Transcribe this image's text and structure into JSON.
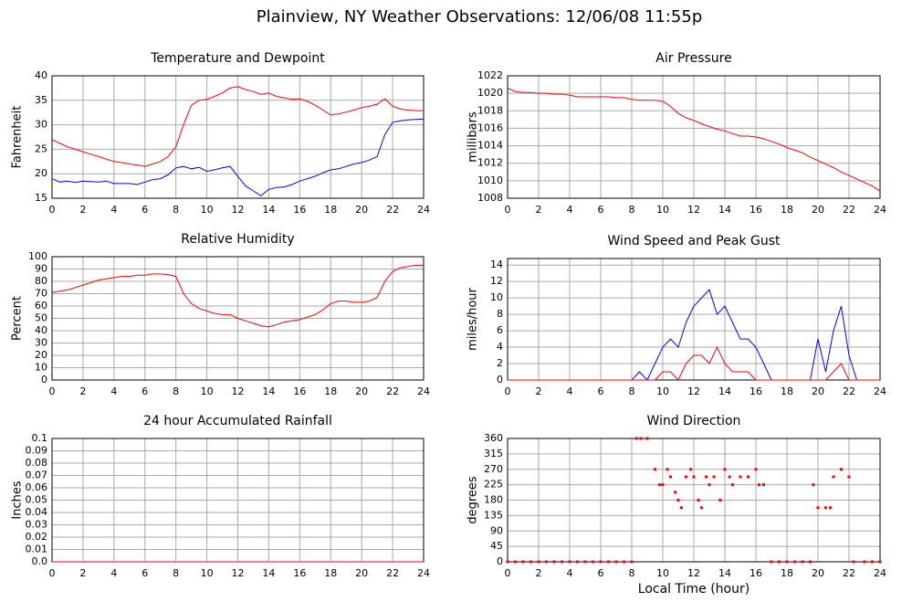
{
  "title": "Plainview, NY Weather Observations: 12/06/08 11:55p",
  "chart_data": [
    {
      "type": "line",
      "title": "Temperature and Dewpoint",
      "ylabel": "Fahrenheit",
      "xlim": [
        0,
        24
      ],
      "xticks": [
        0,
        2,
        4,
        6,
        8,
        10,
        12,
        14,
        16,
        18,
        20,
        22,
        24
      ],
      "ylim": [
        15,
        40
      ],
      "yticks": [
        15,
        20,
        25,
        30,
        35,
        40
      ],
      "grid": true,
      "x": [
        0,
        0.5,
        1,
        1.5,
        2,
        2.5,
        3,
        3.5,
        4,
        4.5,
        5,
        5.5,
        6,
        6.5,
        7,
        7.5,
        8,
        8.5,
        9,
        9.5,
        10,
        10.5,
        11,
        11.5,
        12,
        12.5,
        13,
        13.5,
        14,
        14.5,
        15,
        15.5,
        16,
        16.5,
        17,
        17.5,
        18,
        18.5,
        19,
        19.5,
        20,
        20.5,
        21,
        21.5,
        22,
        22.5,
        23,
        23.5,
        24
      ],
      "series": [
        {
          "color": "#ff0000",
          "values": [
            27,
            26.2,
            25.5,
            25,
            24.5,
            24,
            23.5,
            23,
            22.5,
            22.3,
            22,
            21.8,
            21.5,
            22,
            22.5,
            23.5,
            25.5,
            30,
            34,
            35,
            35.2,
            35.8,
            36.5,
            37.5,
            37.8,
            37.2,
            36.8,
            36.2,
            36.5,
            35.8,
            35.5,
            35.2,
            35.3,
            34.8,
            34,
            33,
            32,
            32.2,
            32.6,
            33,
            33.5,
            33.8,
            34.2,
            35.3,
            33.8,
            33.2,
            33,
            32.9,
            32.9
          ]
        },
        {
          "color": "#0000ff",
          "values": [
            19,
            18.3,
            18.5,
            18.2,
            18.5,
            18.4,
            18.3,
            18.5,
            18,
            18,
            18,
            17.8,
            18.3,
            18.8,
            19,
            19.8,
            21.2,
            21.5,
            21,
            21.3,
            20.5,
            20.8,
            21.2,
            21.5,
            19.5,
            17.5,
            16.5,
            15.5,
            16.8,
            17.2,
            17.3,
            17.8,
            18.5,
            19,
            19.5,
            20.2,
            20.8,
            21,
            21.5,
            22,
            22.3,
            22.8,
            23.5,
            28,
            30.5,
            30.8,
            31,
            31.1,
            31.2
          ]
        }
      ]
    },
    {
      "type": "line",
      "title": "Air Pressure",
      "ylabel": "millibars",
      "xlim": [
        0,
        24
      ],
      "xticks": [
        0,
        2,
        4,
        6,
        8,
        10,
        12,
        14,
        16,
        18,
        20,
        22,
        24
      ],
      "ylim": [
        1008,
        1022
      ],
      "yticks": [
        1008,
        1010,
        1012,
        1014,
        1016,
        1018,
        1020,
        1022
      ],
      "grid": true,
      "x": [
        0,
        0.5,
        1,
        1.5,
        2,
        2.5,
        3,
        3.5,
        4,
        4.5,
        5,
        5.5,
        6,
        6.5,
        7,
        7.5,
        8,
        8.5,
        9,
        9.5,
        10,
        10.5,
        11,
        11.5,
        12,
        12.5,
        13,
        13.5,
        14,
        14.5,
        15,
        15.5,
        16,
        16.5,
        17,
        17.5,
        18,
        18.5,
        19,
        19.5,
        20,
        20.5,
        21,
        21.5,
        22,
        22.5,
        23,
        23.5,
        24
      ],
      "series": [
        {
          "color": "#ff0000",
          "values": [
            1020.6,
            1020.2,
            1020.1,
            1020.1,
            1020,
            1020,
            1019.9,
            1019.9,
            1019.8,
            1019.6,
            1019.6,
            1019.6,
            1019.6,
            1019.6,
            1019.5,
            1019.5,
            1019.3,
            1019.2,
            1019.2,
            1019.2,
            1019.1,
            1018.5,
            1017.7,
            1017.2,
            1016.9,
            1016.5,
            1016.2,
            1015.9,
            1015.7,
            1015.4,
            1015.1,
            1015.1,
            1015,
            1014.8,
            1014.5,
            1014.2,
            1013.8,
            1013.5,
            1013.2,
            1012.7,
            1012.3,
            1011.9,
            1011.5,
            1011,
            1010.6,
            1010.2,
            1009.8,
            1009.4,
            1008.8
          ]
        }
      ]
    },
    {
      "type": "line",
      "title": "Relative Humidity",
      "ylabel": "Percent",
      "xlim": [
        0,
        24
      ],
      "xticks": [
        0,
        2,
        4,
        6,
        8,
        10,
        12,
        14,
        16,
        18,
        20,
        22,
        24
      ],
      "ylim": [
        0,
        100
      ],
      "yticks": [
        0,
        10,
        20,
        30,
        40,
        50,
        60,
        70,
        80,
        90,
        100
      ],
      "grid": true,
      "x": [
        0,
        0.5,
        1,
        1.5,
        2,
        2.5,
        3,
        3.5,
        4,
        4.5,
        5,
        5.5,
        6,
        6.5,
        7,
        7.5,
        8,
        8.5,
        9,
        9.5,
        10,
        10.5,
        11,
        11.5,
        12,
        12.5,
        13,
        13.5,
        14,
        14.5,
        15,
        15.5,
        16,
        16.5,
        17,
        17.5,
        18,
        18.5,
        19,
        19.5,
        20,
        20.5,
        21,
        21.5,
        22,
        22.5,
        23,
        23.5,
        24
      ],
      "series": [
        {
          "color": "#ff0000",
          "values": [
            71,
            72,
            73,
            75,
            77,
            79,
            81,
            82,
            83,
            84,
            84,
            85,
            85,
            86,
            86,
            85.5,
            84,
            70,
            62,
            58,
            56,
            54,
            53,
            53,
            50,
            48,
            46,
            44,
            43,
            45,
            47,
            48,
            49,
            51,
            53,
            57,
            62,
            64,
            64,
            63,
            63,
            64,
            67,
            80,
            88,
            91,
            92,
            93,
            93
          ]
        }
      ]
    },
    {
      "type": "line",
      "title": "Wind Speed and Peak Gust",
      "ylabel": "miles/hour",
      "xlim": [
        0,
        24
      ],
      "xticks": [
        0,
        2,
        4,
        6,
        8,
        10,
        12,
        14,
        16,
        18,
        20,
        22,
        24
      ],
      "ylim": [
        0,
        14.8
      ],
      "yticks": [
        0,
        2,
        4,
        6,
        8,
        10,
        12,
        14
      ],
      "grid": true,
      "x": [
        0,
        0.5,
        1,
        1.5,
        2,
        2.5,
        3,
        3.5,
        4,
        4.5,
        5,
        5.5,
        6,
        6.5,
        7,
        7.5,
        8,
        8.5,
        9,
        9.5,
        10,
        10.5,
        11,
        11.5,
        12,
        12.5,
        13,
        13.5,
        14,
        14.5,
        15,
        15.5,
        16,
        16.5,
        17,
        17.5,
        18,
        18.5,
        19,
        19.5,
        20,
        20.5,
        21,
        21.5,
        22,
        22.5,
        23,
        23.5,
        24
      ],
      "series": [
        {
          "color": "#0000ff",
          "values": [
            0,
            0,
            0,
            0,
            0,
            0,
            0,
            0,
            0,
            0,
            0,
            0,
            0,
            0,
            0,
            0,
            0,
            1,
            0,
            2,
            4,
            5,
            4,
            7,
            9,
            10,
            11,
            8,
            9,
            7,
            5,
            5,
            4,
            2,
            0,
            0,
            0,
            0,
            0,
            0,
            5,
            1,
            6,
            9,
            3,
            0,
            0,
            0,
            0
          ]
        },
        {
          "color": "#ff0000",
          "values": [
            0,
            0,
            0,
            0,
            0,
            0,
            0,
            0,
            0,
            0,
            0,
            0,
            0,
            0,
            0,
            0,
            0,
            0,
            0,
            0,
            1,
            1,
            0,
            2,
            3,
            3,
            2,
            4,
            2,
            1,
            1,
            1,
            0,
            0,
            0,
            0,
            0,
            0,
            0,
            0,
            0,
            0,
            1,
            2,
            0,
            0,
            0,
            0,
            0
          ]
        }
      ]
    },
    {
      "type": "line",
      "title": "24 hour Accumulated Rainfall",
      "ylabel": "Inches",
      "xlim": [
        0,
        24
      ],
      "xticks": [
        0,
        2,
        4,
        6,
        8,
        10,
        12,
        14,
        16,
        18,
        20,
        22,
        24
      ],
      "ylim": [
        0,
        0.1
      ],
      "yticks": [
        {
          "value": 0,
          "label": "0.0"
        },
        0.01,
        0.02,
        0.03,
        0.04,
        0.05,
        0.06,
        0.07,
        0.08,
        0.09,
        0.1
      ],
      "grid": true,
      "x": [
        0,
        24
      ],
      "series": [
        {
          "color": "#ff0000",
          "values": [
            0,
            0
          ]
        }
      ]
    },
    {
      "type": "scatter",
      "title": "Wind Direction",
      "ylabel": "degrees",
      "xlabel": "Local Time (hour)",
      "xlim": [
        0,
        24
      ],
      "xticks": [
        0,
        2,
        4,
        6,
        8,
        10,
        12,
        14,
        16,
        18,
        20,
        22,
        24
      ],
      "ylim": [
        0,
        360
      ],
      "yticks": [
        0,
        45,
        90,
        135,
        180,
        225,
        270,
        315,
        360
      ],
      "grid": true,
      "color": "#ff0000",
      "x": [
        0,
        0.5,
        1,
        1.5,
        2,
        2.5,
        3,
        3.5,
        4,
        4.5,
        5,
        5.5,
        6,
        6.5,
        7,
        7.5,
        8,
        8.3,
        8.6,
        9,
        9.5,
        9.8,
        10,
        10.3,
        10.5,
        10.8,
        11,
        11.2,
        11.5,
        11.8,
        12,
        12.3,
        12.5,
        12.8,
        13,
        13.3,
        13.7,
        14,
        14.3,
        14.5,
        15,
        15.5,
        16,
        16.2,
        16.5,
        17,
        17.5,
        18,
        18.5,
        19,
        19.5,
        19.7,
        20,
        20.5,
        20.8,
        21,
        21.5,
        22,
        22.3,
        23,
        23.5,
        24
      ],
      "values": [
        0,
        0,
        0,
        0,
        0,
        0,
        0,
        0,
        0,
        0,
        0,
        0,
        0,
        0,
        0,
        0,
        0,
        360,
        360,
        360,
        270,
        225,
        225,
        270,
        248,
        203,
        180,
        158,
        248,
        270,
        248,
        180,
        158,
        248,
        225,
        248,
        180,
        270,
        248,
        225,
        248,
        248,
        270,
        225,
        225,
        0,
        0,
        0,
        0,
        0,
        0,
        225,
        158,
        158,
        158,
        248,
        270,
        248,
        0,
        0,
        0,
        0
      ]
    }
  ]
}
